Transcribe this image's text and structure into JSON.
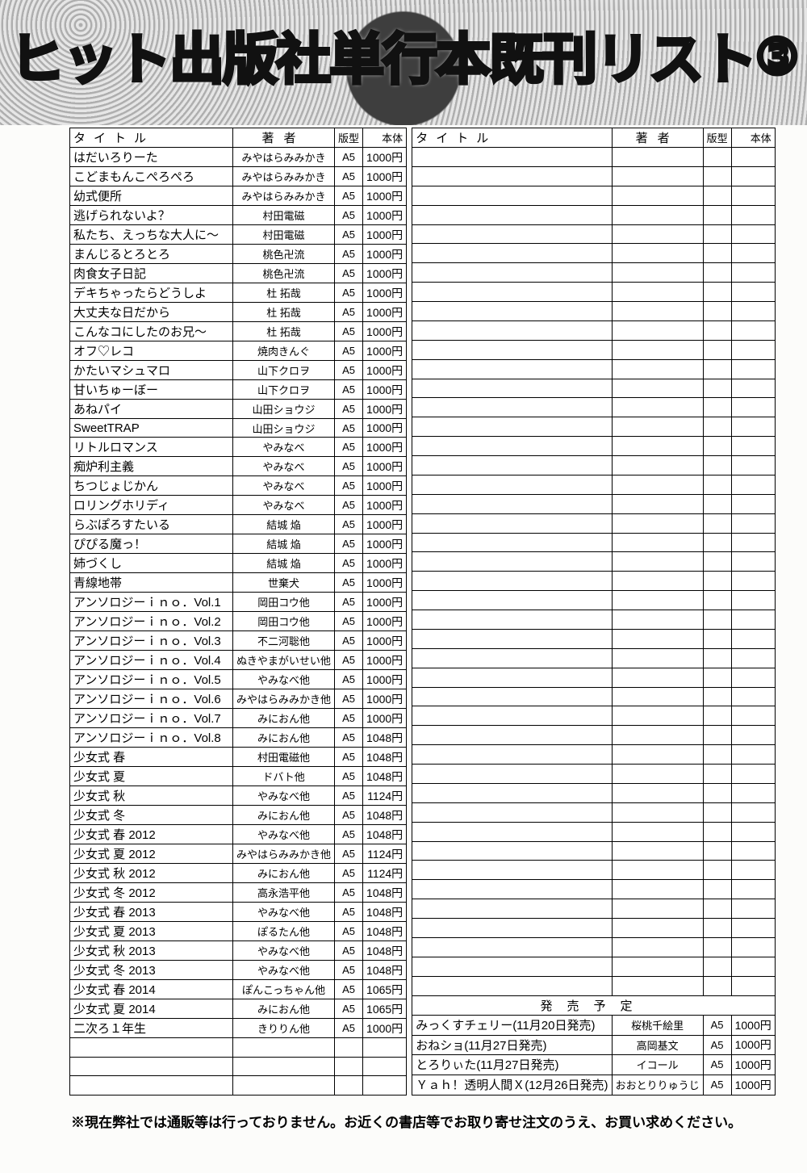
{
  "header": {
    "title": "ヒット出版社単行本既刊リスト",
    "number": "③"
  },
  "columns": {
    "title": "タイトル",
    "author": "著者",
    "format": "版型",
    "price": "本体"
  },
  "left_rows": [
    {
      "title": "はだいろりーた",
      "author": "みやはらみみかき",
      "format": "A5",
      "price": "1000円"
    },
    {
      "title": "こどまもんこぺろぺろ",
      "author": "みやはらみみかき",
      "format": "A5",
      "price": "1000円"
    },
    {
      "title": "幼式便所",
      "author": "みやはらみみかき",
      "format": "A5",
      "price": "1000円"
    },
    {
      "title": "逃げられないよ？",
      "author": "村田電磁",
      "format": "A5",
      "price": "1000円"
    },
    {
      "title": "私たち、えっちな大人に～",
      "author": "村田電磁",
      "format": "A5",
      "price": "1000円"
    },
    {
      "title": "まんじるとろとろ",
      "author": "桃色卍流",
      "format": "A5",
      "price": "1000円"
    },
    {
      "title": "肉食女子日記",
      "author": "桃色卍流",
      "format": "A5",
      "price": "1000円"
    },
    {
      "title": "デキちゃったらどうしよ",
      "author": "杜 拓哉",
      "format": "A5",
      "price": "1000円"
    },
    {
      "title": "大丈夫な日だから",
      "author": "杜 拓哉",
      "format": "A5",
      "price": "1000円"
    },
    {
      "title": "こんなコにしたのお兄～",
      "author": "杜 拓哉",
      "format": "A5",
      "price": "1000円"
    },
    {
      "title": "オフ♡レコ",
      "author": "焼肉きんぐ",
      "format": "A5",
      "price": "1000円"
    },
    {
      "title": "かたいマシュマロ",
      "author": "山下クロヲ",
      "format": "A5",
      "price": "1000円"
    },
    {
      "title": "甘いちゅーぼー",
      "author": "山下クロヲ",
      "format": "A5",
      "price": "1000円"
    },
    {
      "title": "あねパイ",
      "author": "山田ショウジ",
      "format": "A5",
      "price": "1000円"
    },
    {
      "title": "SweetTRAP",
      "author": "山田ショウジ",
      "format": "A5",
      "price": "1000円"
    },
    {
      "title": "リトルロマンス",
      "author": "やみなべ",
      "format": "A5",
      "price": "1000円"
    },
    {
      "title": "痴炉利主義",
      "author": "やみなべ",
      "format": "A5",
      "price": "1000円"
    },
    {
      "title": "ちつじょじかん",
      "author": "やみなべ",
      "format": "A5",
      "price": "1000円"
    },
    {
      "title": "ロリングホリディ",
      "author": "やみなべ",
      "format": "A5",
      "price": "1000円"
    },
    {
      "title": "らぶぽろすたいる",
      "author": "結城 焔",
      "format": "A5",
      "price": "1000円"
    },
    {
      "title": "ぴぴる魔っ！",
      "author": "結城 焔",
      "format": "A5",
      "price": "1000円"
    },
    {
      "title": "姉づくし",
      "author": "結城 焔",
      "format": "A5",
      "price": "1000円"
    },
    {
      "title": "青線地帯",
      "author": "世棄犬",
      "format": "A5",
      "price": "1000円"
    },
    {
      "title": "アンソロジーｉｎｏ．Vol.1",
      "author": "岡田コウ他",
      "format": "A5",
      "price": "1000円"
    },
    {
      "title": "アンソロジーｉｎｏ．Vol.2",
      "author": "岡田コウ他",
      "format": "A5",
      "price": "1000円"
    },
    {
      "title": "アンソロジーｉｎｏ．Vol.3",
      "author": "不二河聡他",
      "format": "A5",
      "price": "1000円"
    },
    {
      "title": "アンソロジーｉｎｏ．Vol.4",
      "author": "ぬきやまがいせい他",
      "format": "A5",
      "price": "1000円"
    },
    {
      "title": "アンソロジーｉｎｏ．Vol.5",
      "author": "やみなべ他",
      "format": "A5",
      "price": "1000円"
    },
    {
      "title": "アンソロジーｉｎｏ．Vol.6",
      "author": "みやはらみみかき他",
      "format": "A5",
      "price": "1000円"
    },
    {
      "title": "アンソロジーｉｎｏ．Vol.7",
      "author": "みにおん他",
      "format": "A5",
      "price": "1000円"
    },
    {
      "title": "アンソロジーｉｎｏ．Vol.8",
      "author": "みにおん他",
      "format": "A5",
      "price": "1048円"
    },
    {
      "title": "少女式 春",
      "author": "村田電磁他",
      "format": "A5",
      "price": "1048円"
    },
    {
      "title": "少女式 夏",
      "author": "ドバト他",
      "format": "A5",
      "price": "1048円"
    },
    {
      "title": "少女式 秋",
      "author": "やみなべ他",
      "format": "A5",
      "price": "1124円"
    },
    {
      "title": "少女式 冬",
      "author": "みにおん他",
      "format": "A5",
      "price": "1048円"
    },
    {
      "title": "少女式 春 2012",
      "author": "やみなべ他",
      "format": "A5",
      "price": "1048円"
    },
    {
      "title": "少女式 夏 2012",
      "author": "みやはらみみかき他",
      "format": "A5",
      "price": "1124円"
    },
    {
      "title": "少女式 秋 2012",
      "author": "みにおん他",
      "format": "A5",
      "price": "1124円"
    },
    {
      "title": "少女式 冬 2012",
      "author": "高永浩平他",
      "format": "A5",
      "price": "1048円"
    },
    {
      "title": "少女式 春 2013",
      "author": "やみなべ他",
      "format": "A5",
      "price": "1048円"
    },
    {
      "title": "少女式 夏 2013",
      "author": "ぽるたん他",
      "format": "A5",
      "price": "1048円"
    },
    {
      "title": "少女式 秋 2013",
      "author": "やみなべ他",
      "format": "A5",
      "price": "1048円"
    },
    {
      "title": "少女式 冬 2013",
      "author": "やみなべ他",
      "format": "A5",
      "price": "1048円"
    },
    {
      "title": "少女式 春 2014",
      "author": "ぽんこっちゃん他",
      "format": "A5",
      "price": "1065円"
    },
    {
      "title": "少女式 夏 2014",
      "author": "みにおん他",
      "format": "A5",
      "price": "1065円"
    },
    {
      "title": "二次ろ１年生",
      "author": "きりりん他",
      "format": "A5",
      "price": "1000円"
    },
    {
      "title": "",
      "author": "",
      "format": "",
      "price": ""
    },
    {
      "title": "",
      "author": "",
      "format": "",
      "price": ""
    },
    {
      "title": "",
      "author": "",
      "format": "",
      "price": ""
    }
  ],
  "right_empty_count": 44,
  "upcoming": {
    "header": "発売予定",
    "rows": [
      {
        "title": "みっくすチェリー(11月20日発売)",
        "author": "桜桃千絵里",
        "format": "A5",
        "price": "1000円"
      },
      {
        "title": "おねショ(11月27日発売)",
        "author": "高岡基文",
        "format": "A5",
        "price": "1000円"
      },
      {
        "title": "とろりぃた(11月27日発売)",
        "author": "イコール",
        "format": "A5",
        "price": "1000円"
      },
      {
        "title": "Ｙａｈ！透明人間Ｘ(12月26日発売)",
        "author": "おおとりりゅうじ",
        "format": "A5",
        "price": "1000円"
      }
    ]
  },
  "footnote": "※現在弊社では通販等は行っておりません。お近くの書店等でお取り寄せ注文のうえ、お買い求めください。"
}
